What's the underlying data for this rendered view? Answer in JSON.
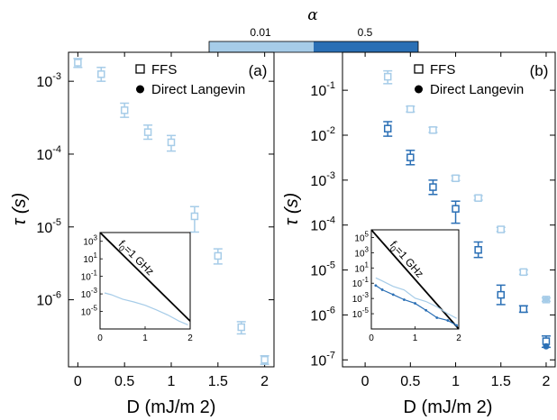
{
  "colors": {
    "light": "#a6cce8",
    "dark": "#2a6fb5",
    "line": "#000000"
  },
  "colorbar": {
    "title": "α",
    "labels": [
      "0.01",
      "0.5"
    ]
  },
  "chart_data": [
    {
      "panel": "(a)",
      "type": "scatter",
      "xlabel": "D (mJ/m 2)",
      "ylabel": "τ (s)",
      "xlim": [
        -0.1,
        2.1
      ],
      "yscale": "log",
      "ylim": [
        1.2e-07,
        0.0025
      ],
      "xticks": [
        0,
        0.5,
        1,
        1.5,
        2
      ],
      "xticklabels": [
        "0",
        "0.5",
        "1",
        "1.5",
        "2"
      ],
      "yticks": [
        1e-06,
        1e-05,
        0.0001,
        0.001
      ],
      "yticklabels": [
        "10-6",
        "10-5",
        "10-4",
        "10-3"
      ],
      "legend": [
        "FFS",
        "Direct Langevin"
      ],
      "legend_position": "top-right",
      "series": [
        {
          "alpha": "0.01",
          "color": "light",
          "marker": "open-square",
          "points": [
            {
              "x": 0,
              "y": 0.0018,
              "lo": 0.00155,
              "hi": 0.00205
            },
            {
              "x": 0.25,
              "y": 0.00125,
              "lo": 0.001,
              "hi": 0.00155
            },
            {
              "x": 0.5,
              "y": 0.0004,
              "lo": 0.00032,
              "hi": 0.0005
            },
            {
              "x": 0.75,
              "y": 0.0002,
              "lo": 0.00016,
              "hi": 0.00025
            },
            {
              "x": 1.0,
              "y": 0.000145,
              "lo": 0.00011,
              "hi": 0.00018
            },
            {
              "x": 1.25,
              "y": 1.4e-05,
              "lo": 8.5e-06,
              "hi": 1.9e-05
            },
            {
              "x": 1.5,
              "y": 4e-06,
              "lo": 3.1e-06,
              "hi": 5e-06
            },
            {
              "x": 1.75,
              "y": 4.2e-07,
              "lo": 3.4e-07,
              "hi": 5e-07
            },
            {
              "x": 2.0,
              "y": 1.5e-07,
              "lo": 1.3e-07,
              "hi": 1.7e-07
            }
          ]
        }
      ],
      "inset": {
        "xlim": [
          0,
          2
        ],
        "ylim": [
          1e-07,
          10000.0
        ],
        "xticklabels": [
          "0",
          "1",
          "2"
        ],
        "yticklabels": [
          "103",
          "101",
          "10-1",
          "10-3",
          "10-5"
        ],
        "annotation": "f0=1 GHz",
        "reference_line": [
          {
            "x": 0,
            "y": 10000.0
          },
          {
            "x": 2,
            "y": 8e-07
          }
        ],
        "curves": [
          {
            "color": "light",
            "points": [
              [
                0.1,
                0.0013
              ],
              [
                0.25,
                0.0008
              ],
              [
                0.5,
                0.00025
              ],
              [
                0.75,
                0.00012
              ],
              [
                1.0,
                5e-05
              ],
              [
                1.25,
                1.5e-05
              ],
              [
                1.5,
                4e-06
              ],
              [
                1.75,
                8e-07
              ],
              [
                1.95,
                3e-07
              ]
            ]
          }
        ]
      }
    },
    {
      "panel": "(b)",
      "type": "scatter",
      "xlabel": "D (mJ/m 2)",
      "ylabel": "τ (s)",
      "xlim": [
        -0.25,
        2.1
      ],
      "yscale": "log",
      "ylim": [
        7e-08,
        0.7
      ],
      "xticks": [
        0,
        0.5,
        1,
        1.5,
        2
      ],
      "xticklabels": [
        "0",
        "0.5",
        "1",
        "1.5",
        "2"
      ],
      "yticks": [
        1e-07,
        1e-06,
        1e-05,
        0.0001,
        0.001,
        0.01,
        0.1
      ],
      "yticklabels": [
        "10-7",
        "10-6",
        "10-5",
        "10-4",
        "10-3",
        "10-2",
        "10-1"
      ],
      "legend": [
        "FFS",
        "Direct Langevin"
      ],
      "legend_position": "top-right",
      "series": [
        {
          "alpha": "0.01",
          "color": "light",
          "marker": "open-square",
          "points": [
            {
              "x": 0.25,
              "y": 0.2,
              "lo": 0.14,
              "hi": 0.27
            },
            {
              "x": 0.5,
              "y": 0.038,
              "lo": 0.033,
              "hi": 0.044
            },
            {
              "x": 0.75,
              "y": 0.013,
              "lo": 0.0115,
              "hi": 0.015
            },
            {
              "x": 1.0,
              "y": 0.0011,
              "lo": 0.00098,
              "hi": 0.00125
            },
            {
              "x": 1.25,
              "y": 0.0004,
              "lo": 0.00036,
              "hi": 0.00045
            },
            {
              "x": 1.5,
              "y": 8e-05,
              "lo": 7.2e-05,
              "hi": 8.9e-05
            },
            {
              "x": 1.75,
              "y": 9e-06,
              "lo": 8e-06,
              "hi": 1e-05
            },
            {
              "x": 2.0,
              "y": 2.2e-06,
              "lo": 2e-06,
              "hi": 2.4e-06
            }
          ]
        },
        {
          "alpha": "0.5",
          "color": "dark",
          "marker": "open-square",
          "points": [
            {
              "x": 0.25,
              "y": 0.014,
              "lo": 0.0095,
              "hi": 0.02
            },
            {
              "x": 0.5,
              "y": 0.0032,
              "lo": 0.0022,
              "hi": 0.0046
            },
            {
              "x": 0.75,
              "y": 0.0007,
              "lo": 0.00048,
              "hi": 0.001
            },
            {
              "x": 1.0,
              "y": 0.00023,
              "lo": 0.00011,
              "hi": 0.00034
            },
            {
              "x": 1.25,
              "y": 2.8e-05,
              "lo": 1.9e-05,
              "hi": 4.2e-05
            },
            {
              "x": 1.5,
              "y": 2.8e-06,
              "lo": 1.7e-06,
              "hi": 4.6e-06
            },
            {
              "x": 1.75,
              "y": 1.35e-06,
              "lo": 1.15e-06,
              "hi": 1.6e-06
            },
            {
              "x": 2.0,
              "y": 2.6e-07,
              "lo": 1.9e-07,
              "hi": 3.4e-07
            }
          ]
        },
        {
          "alpha": "0.5",
          "color": "dark",
          "marker": "filled-circle",
          "points": [
            {
              "x": 2.0,
              "y": 2e-07
            }
          ]
        },
        {
          "alpha": "0.01",
          "color": "light",
          "marker": "filled-circle",
          "points": [
            {
              "x": 2.0,
              "y": 2.2e-06
            }
          ]
        }
      ],
      "inset": {
        "xlim": [
          0,
          2
        ],
        "ylim": [
          1e-07,
          1000000.0
        ],
        "xticklabels": [
          "0",
          "1",
          "2"
        ],
        "yticklabels": [
          "105",
          "103",
          "101",
          "10-1",
          "10-3",
          "10-5"
        ],
        "annotation": "f0=1 GHz",
        "reference_line": [
          {
            "x": 0,
            "y": 1000000.0
          },
          {
            "x": 2,
            "y": 1e-07
          }
        ],
        "curves": [
          {
            "color": "light",
            "points": [
              [
                0.1,
                0.5
              ],
              [
                0.25,
                0.2
              ],
              [
                0.5,
                0.038
              ],
              [
                0.75,
                0.013
              ],
              [
                1.0,
                0.0011
              ],
              [
                1.25,
                0.0004
              ],
              [
                1.5,
                8e-05
              ],
              [
                1.75,
                1e-05
              ],
              [
                1.95,
                2.5e-06
              ]
            ]
          },
          {
            "color": "dark",
            "points": [
              [
                0.1,
                0.05
              ],
              [
                0.25,
                0.014
              ],
              [
                0.5,
                0.0032
              ],
              [
                0.75,
                0.0007
              ],
              [
                1.0,
                0.00023
              ],
              [
                1.25,
                2.8e-05
              ],
              [
                1.5,
                3e-06
              ],
              [
                1.75,
                1.3e-06
              ],
              [
                1.95,
                3e-07
              ]
            ]
          }
        ]
      }
    }
  ]
}
